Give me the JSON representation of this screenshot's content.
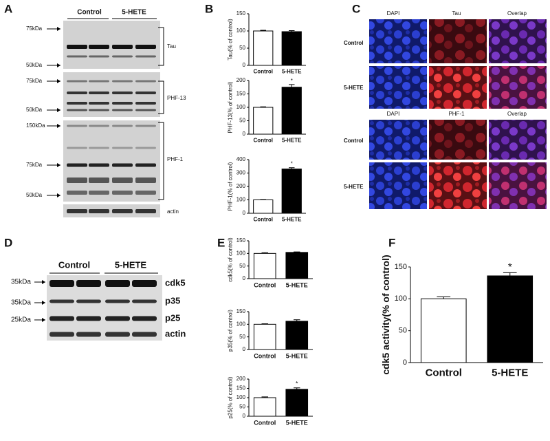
{
  "labels": [
    "A",
    "B",
    "C",
    "D",
    "E",
    "F"
  ],
  "blot_a": {
    "groups": [
      "Control",
      "5-HETE"
    ],
    "markers": [
      "75kDa",
      "50kDa",
      "75kDa",
      "50kDa",
      "150kDa",
      "75kDa",
      "50kDa"
    ],
    "proteins": [
      "Tau",
      "PHF-13",
      "PHF-1",
      "actin"
    ]
  },
  "images_c": {
    "headers_top": [
      "DAPI",
      "Tau",
      "Overlap"
    ],
    "rows_top": [
      "Control",
      "5-HETE"
    ],
    "headers_bottom": [
      "DAPI",
      "PHF-1",
      "Overlap"
    ],
    "rows_bottom": [
      "Control",
      "5-HETE"
    ]
  },
  "blot_d": {
    "groups": [
      "Control",
      "5-HETE"
    ],
    "markers": [
      "35kDa",
      "35kDa",
      "25kDa"
    ],
    "proteins": [
      "cdk5",
      "p35",
      "p25",
      "actin"
    ]
  },
  "chart_data": [
    {
      "type": "bar",
      "ylabel": "Tau(% of control)",
      "categories": [
        "Control",
        "5-HETE"
      ],
      "values": [
        100,
        98
      ],
      "errors": [
        2,
        3
      ],
      "colors": [
        "#ffffff",
        "#000000"
      ],
      "ylim": [
        0,
        150
      ],
      "yticks": [
        0,
        50,
        100,
        150
      ]
    },
    {
      "type": "bar",
      "ylabel": "PHF-13(% of control)",
      "categories": [
        "Control",
        "5-HETE"
      ],
      "values": [
        100,
        175
      ],
      "errors": [
        2,
        10
      ],
      "colors": [
        "#ffffff",
        "#000000"
      ],
      "ylim": [
        0,
        200
      ],
      "yticks": [
        0,
        50,
        100,
        150,
        200
      ],
      "annotations": [
        {
          "text": "*",
          "category": "5-HETE"
        }
      ]
    },
    {
      "type": "bar",
      "ylabel": "PHF-1(% of control)",
      "categories": [
        "Control",
        "5-HETE"
      ],
      "values": [
        100,
        330
      ],
      "errors": [
        2,
        10
      ],
      "colors": [
        "#ffffff",
        "#000000"
      ],
      "ylim": [
        0,
        400
      ],
      "yticks": [
        0,
        100,
        200,
        300,
        400
      ],
      "annotations": [
        {
          "text": "*",
          "category": "5-HETE"
        }
      ]
    },
    {
      "type": "bar",
      "ylabel": "cdk5(% of control)",
      "categories": [
        "Control",
        "5-HETE"
      ],
      "values": [
        100,
        104
      ],
      "errors": [
        3,
        2
      ],
      "colors": [
        "#ffffff",
        "#000000"
      ],
      "ylim": [
        0,
        150
      ],
      "yticks": [
        0,
        50,
        100,
        150
      ]
    },
    {
      "type": "bar",
      "ylabel": "p35(% of control)",
      "categories": [
        "Control",
        "5-HETE"
      ],
      "values": [
        100,
        112
      ],
      "errors": [
        2,
        6
      ],
      "colors": [
        "#ffffff",
        "#000000"
      ],
      "ylim": [
        0,
        150
      ],
      "yticks": [
        0,
        50,
        100,
        150
      ]
    },
    {
      "type": "bar",
      "ylabel": "p25(% of control)",
      "categories": [
        "Control",
        "5-HETE"
      ],
      "values": [
        100,
        145
      ],
      "errors": [
        4,
        8
      ],
      "colors": [
        "#ffffff",
        "#000000"
      ],
      "ylim": [
        0,
        200
      ],
      "yticks": [
        0,
        50,
        100,
        150,
        200
      ],
      "annotations": [
        {
          "text": "*",
          "category": "5-HETE"
        }
      ]
    },
    {
      "type": "bar",
      "ylabel": "cdk5 activity(% of control)",
      "categories": [
        "Control",
        "5-HETE"
      ],
      "values": [
        100,
        136
      ],
      "errors": [
        3,
        5
      ],
      "colors": [
        "#ffffff",
        "#000000"
      ],
      "ylim": [
        0,
        150
      ],
      "yticks": [
        0,
        50,
        100,
        150
      ],
      "annotations": [
        {
          "text": "*",
          "category": "5-HETE"
        }
      ]
    }
  ]
}
